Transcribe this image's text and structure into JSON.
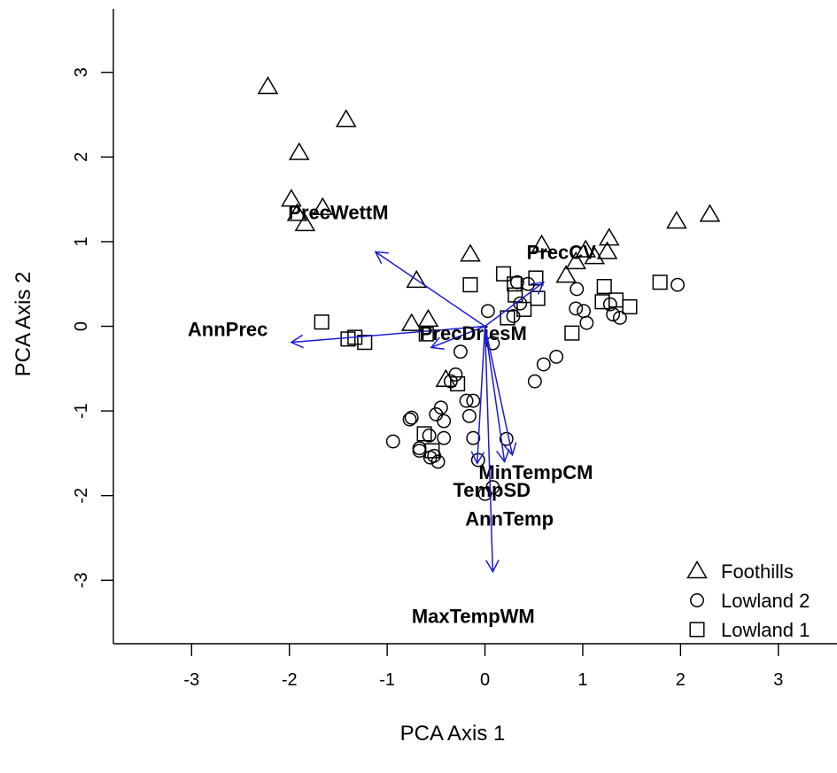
{
  "chart_data": {
    "type": "scatter",
    "title": "",
    "xlabel": "PCA Axis 1",
    "ylabel": "PCA Axis 2",
    "xlim": [
      -3.8,
      3.6
    ],
    "ylim": [
      -3.75,
      3.75
    ],
    "xticks": [
      "-3",
      "-2",
      "-1",
      "0",
      "1",
      "2",
      "3"
    ],
    "yticks": [
      "-3",
      "-2",
      "-1",
      "0",
      "1",
      "2",
      "3"
    ],
    "grid": false,
    "legend_position": "bottom-right",
    "series": [
      {
        "name": "Foothills",
        "marker": "triangle",
        "points": [
          [
            -2.22,
            2.83
          ],
          [
            -1.42,
            2.44
          ],
          [
            -1.9,
            2.05
          ],
          [
            -1.98,
            1.5
          ],
          [
            -1.92,
            1.33
          ],
          [
            -1.66,
            1.4
          ],
          [
            -1.84,
            1.21
          ],
          [
            -0.7,
            0.54
          ],
          [
            -0.15,
            0.85
          ],
          [
            0.58,
            0.96
          ],
          [
            0.93,
            0.76
          ],
          [
            1.03,
            0.9
          ],
          [
            1.12,
            0.82
          ],
          [
            1.25,
            0.88
          ],
          [
            1.27,
            1.04
          ],
          [
            0.83,
            0.6
          ],
          [
            1.96,
            1.24
          ],
          [
            2.3,
            1.32
          ],
          [
            -0.75,
            0.03
          ],
          [
            -0.58,
            0.08
          ],
          [
            -0.4,
            -0.63
          ]
        ]
      },
      {
        "name": "Lowland 2",
        "marker": "circle",
        "points": [
          [
            0.03,
            0.18
          ],
          [
            0.44,
            0.5
          ],
          [
            0.33,
            0.52
          ],
          [
            0.29,
            0.12
          ],
          [
            0.36,
            0.27
          ],
          [
            0.94,
            0.44
          ],
          [
            0.93,
            0.21
          ],
          [
            1.01,
            0.18
          ],
          [
            1.04,
            0.04
          ],
          [
            1.28,
            0.26
          ],
          [
            1.31,
            0.14
          ],
          [
            1.38,
            0.1
          ],
          [
            1.97,
            0.49
          ],
          [
            0.08,
            -0.2
          ],
          [
            0.73,
            -0.36
          ],
          [
            0.6,
            -0.45
          ],
          [
            0.51,
            -0.65
          ],
          [
            -0.25,
            -0.3
          ],
          [
            -0.3,
            -0.57
          ],
          [
            -0.35,
            -0.65
          ],
          [
            -0.45,
            -0.96
          ],
          [
            -0.5,
            -1.04
          ],
          [
            -0.19,
            -0.88
          ],
          [
            -0.12,
            -0.88
          ],
          [
            -0.16,
            -1.06
          ],
          [
            -0.94,
            -1.36
          ],
          [
            -0.77,
            -1.1
          ],
          [
            -0.75,
            -1.08
          ],
          [
            -0.67,
            -1.44
          ],
          [
            -0.67,
            -1.47
          ],
          [
            -0.57,
            -1.29
          ],
          [
            -0.42,
            -1.12
          ],
          [
            -0.42,
            -1.32
          ],
          [
            -0.56,
            -1.55
          ],
          [
            -0.52,
            -1.53
          ],
          [
            -0.48,
            -1.6
          ],
          [
            -0.12,
            -1.32
          ],
          [
            0.22,
            -1.33
          ],
          [
            0.0,
            -1.98
          ],
          [
            -0.07,
            -1.58
          ],
          [
            0.08,
            -1.9
          ]
        ]
      },
      {
        "name": "Lowland 1",
        "marker": "square",
        "points": [
          [
            -1.67,
            0.05
          ],
          [
            -1.4,
            -0.15
          ],
          [
            -1.33,
            -0.13
          ],
          [
            -1.23,
            -0.19
          ],
          [
            -0.6,
            -0.09
          ],
          [
            -0.15,
            0.49
          ],
          [
            0.19,
            0.62
          ],
          [
            0.3,
            0.5
          ],
          [
            0.31,
            0.37
          ],
          [
            0.52,
            0.57
          ],
          [
            0.54,
            0.33
          ],
          [
            0.4,
            0.2
          ],
          [
            0.23,
            0.1
          ],
          [
            -0.28,
            -0.68
          ],
          [
            0.89,
            -0.08
          ],
          [
            1.2,
            0.29
          ],
          [
            1.22,
            0.47
          ],
          [
            1.34,
            0.31
          ],
          [
            1.48,
            0.23
          ],
          [
            1.79,
            0.52
          ],
          [
            -0.62,
            -1.27
          ],
          [
            -0.54,
            -1.47
          ]
        ]
      }
    ],
    "loadings": [
      {
        "name": "PrecWettM",
        "end": [
          -1.12,
          0.88
        ],
        "label_at": [
          -1.5,
          1.35
        ]
      },
      {
        "name": "PrecCV",
        "end": [
          0.6,
          0.52
        ],
        "label_at": [
          0.78,
          0.88
        ]
      },
      {
        "name": "AnnPrec",
        "end": [
          -1.98,
          -0.19
        ],
        "label_at": [
          -2.63,
          -0.03
        ]
      },
      {
        "name": "PrecDriesM",
        "end": [
          -0.55,
          -0.25
        ],
        "label_at": [
          -0.12,
          -0.08
        ]
      },
      {
        "name": "MinTempCM",
        "end": [
          0.2,
          -1.6
        ],
        "label_at": [
          0.52,
          -1.72
        ]
      },
      {
        "name": "TempSD",
        "end": [
          0.28,
          -1.52
        ],
        "label_at": [
          0.07,
          -1.93
        ]
      },
      {
        "name": "AnnTemp",
        "end": [
          -0.08,
          -1.62
        ],
        "label_at": [
          0.25,
          -2.27
        ]
      },
      {
        "name": "MaxTempWM",
        "end": [
          0.08,
          -2.9
        ],
        "label_at": [
          -0.12,
          -3.42
        ]
      }
    ]
  }
}
